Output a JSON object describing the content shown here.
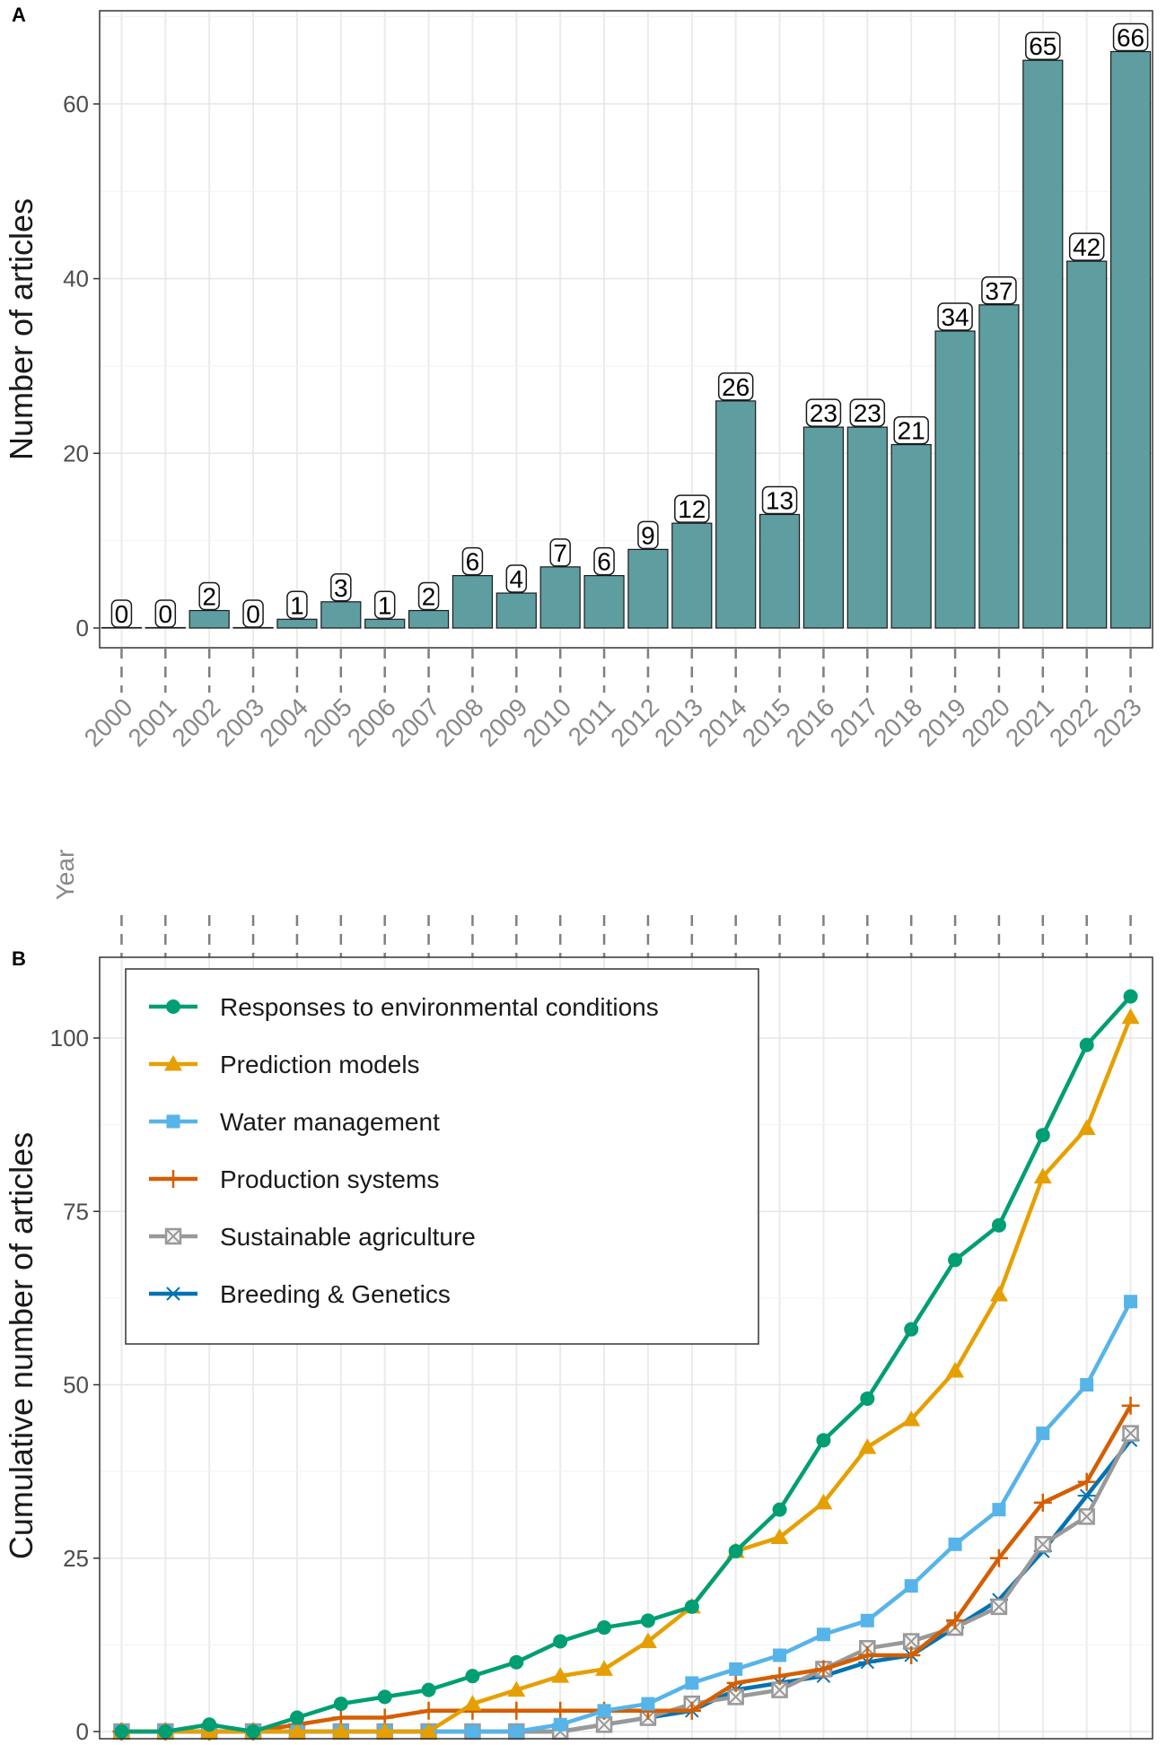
{
  "panels": {
    "a": "A",
    "b": "B"
  },
  "x_axis": {
    "label": "Year",
    "years": [
      "2000",
      "2001",
      "2002",
      "2003",
      "2004",
      "2005",
      "2006",
      "2007",
      "2008",
      "2009",
      "2010",
      "2011",
      "2012",
      "2013",
      "2014",
      "2015",
      "2016",
      "2017",
      "2018",
      "2019",
      "2020",
      "2021",
      "2022",
      "2023"
    ]
  },
  "chart_data": [
    {
      "type": "bar",
      "panel": "A",
      "ylabel": "Number of articles",
      "xlabel": "Year",
      "ylim": [
        0,
        70
      ],
      "yticks": [
        0,
        20,
        40,
        60
      ],
      "categories": [
        "2000",
        "2001",
        "2002",
        "2003",
        "2004",
        "2005",
        "2006",
        "2007",
        "2008",
        "2009",
        "2010",
        "2011",
        "2012",
        "2013",
        "2014",
        "2015",
        "2016",
        "2017",
        "2018",
        "2019",
        "2020",
        "2021",
        "2022",
        "2023"
      ],
      "values": [
        0,
        0,
        2,
        0,
        1,
        3,
        1,
        2,
        6,
        4,
        7,
        6,
        9,
        12,
        26,
        13,
        23,
        23,
        21,
        34,
        37,
        65,
        42,
        66
      ],
      "bar_color": "#5f9ea0",
      "data_labels": true
    },
    {
      "type": "line",
      "panel": "B",
      "ylabel": "Cumulative number of articles",
      "xlabel": "Year",
      "ylim": [
        0,
        110
      ],
      "yticks": [
        0,
        25,
        50,
        75,
        100
      ],
      "x": [
        "2000",
        "2001",
        "2002",
        "2003",
        "2004",
        "2005",
        "2006",
        "2007",
        "2008",
        "2009",
        "2010",
        "2011",
        "2012",
        "2013",
        "2014",
        "2015",
        "2016",
        "2017",
        "2018",
        "2019",
        "2020",
        "2021",
        "2022",
        "2023"
      ],
      "legend_position": "top-left",
      "series": [
        {
          "name": "Responses to environmental conditions",
          "color": "#009e73",
          "marker": "circle",
          "values": [
            0,
            0,
            1,
            0,
            2,
            4,
            5,
            6,
            8,
            10,
            13,
            15,
            16,
            18,
            26,
            32,
            42,
            48,
            58,
            68,
            73,
            86,
            99,
            106
          ]
        },
        {
          "name": "Prediction models",
          "color": "#e69f00",
          "marker": "triangle",
          "values": [
            0,
            0,
            0,
            0,
            0,
            0,
            0,
            0,
            4,
            6,
            8,
            9,
            13,
            18,
            26,
            28,
            33,
            41,
            45,
            52,
            63,
            80,
            87,
            103
          ]
        },
        {
          "name": "Water management",
          "color": "#56b4e9",
          "marker": "square",
          "values": [
            0,
            0,
            0,
            0,
            0,
            0,
            0,
            0,
            0,
            0,
            1,
            3,
            4,
            7,
            9,
            11,
            14,
            16,
            21,
            27,
            32,
            43,
            50,
            62
          ]
        },
        {
          "name": "Production systems",
          "color": "#d55e00",
          "marker": "plus",
          "values": [
            0,
            0,
            0,
            0,
            1,
            2,
            2,
            3,
            3,
            3,
            3,
            3,
            3,
            3,
            7,
            8,
            9,
            11,
            11,
            16,
            25,
            33,
            36,
            47
          ]
        },
        {
          "name": "Sustainable agriculture",
          "color": "#999999",
          "marker": "boxcross",
          "values": [
            0,
            0,
            0,
            0,
            0,
            0,
            0,
            0,
            0,
            0,
            0,
            1,
            2,
            4,
            5,
            6,
            9,
            12,
            13,
            15,
            18,
            27,
            31,
            43
          ]
        },
        {
          "name": "Breeding & Genetics",
          "color": "#0072b2",
          "marker": "asterisk",
          "values": [
            0,
            0,
            0,
            0,
            0,
            0,
            0,
            0,
            0,
            0,
            0,
            1,
            2,
            3,
            6,
            7,
            8,
            10,
            11,
            15,
            19,
            26,
            34,
            42
          ]
        }
      ]
    }
  ]
}
